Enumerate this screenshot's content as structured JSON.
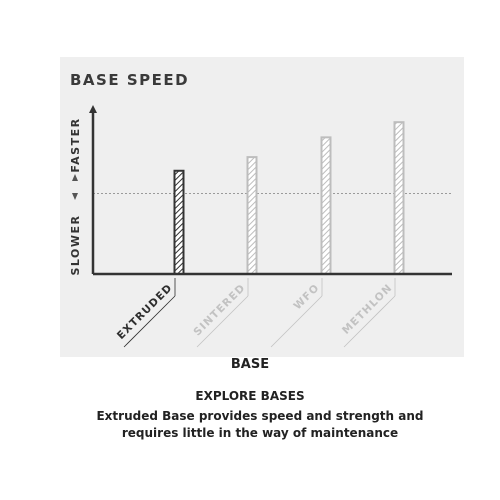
{
  "chart_data": {
    "type": "bar",
    "title": "BASE SPEED",
    "xlabel": "BASE",
    "ylabel_high": "FASTER",
    "ylabel_low": "SLOWER",
    "categories": [
      "EXTRUDED",
      "SINTERED",
      "WFO",
      "METHLON"
    ],
    "values": [
      6.8,
      7.7,
      9.0,
      10.0
    ],
    "ylim": [
      0,
      11
    ],
    "reference_line": 5.3,
    "highlighted": "EXTRUDED",
    "y_ticks_shown": false,
    "grid": false
  },
  "caption": {
    "x_title": "BASE",
    "heading": "EXPLORE BASES",
    "description": "Extruded Base provides speed and strength and requires little in the way of maintenance"
  },
  "colors": {
    "highlight": "#333333",
    "muted": "#bdbdbd",
    "axis": "#333333",
    "panel": "#efefef"
  }
}
